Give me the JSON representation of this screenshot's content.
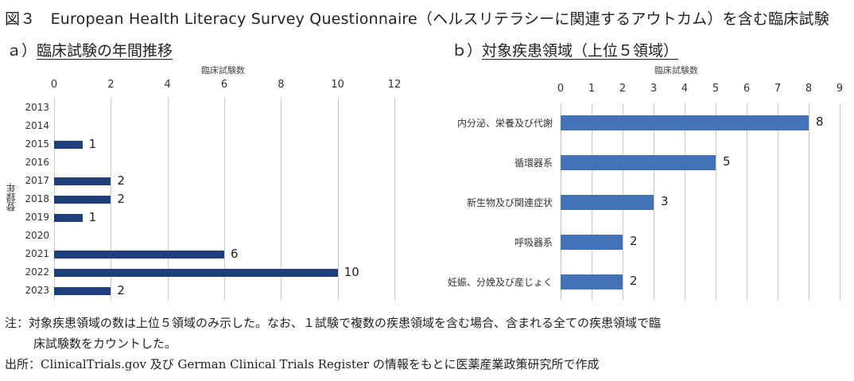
{
  "figure": {
    "title": "図３　European Health Literacy Survey Questionnaire（ヘルスリテラシーに関連するアウトカム）を含む臨床試験"
  },
  "panel_a": {
    "label": "ａ）",
    "title": "臨床試験の年間推移",
    "xlabel": "臨床試験数",
    "ylabel": "登録年"
  },
  "panel_b": {
    "label": "ｂ）",
    "title": "対象疾患領域（上位５領域）",
    "xlabel": "臨床試験数"
  },
  "notes": {
    "note_line1": "注：対象疾患領域の数は上位５領域のみ示した。なお、１試験で複数の疾患領域を含む場合、含まれる全ての疾患領域で臨",
    "note_line2": "床試験数をカウントした。",
    "source": "出所：ClinicalTrials.gov 及び German Clinical Trials Register の情報をもとに医薬産業政策研究所で作成"
  },
  "colors": {
    "bar_a": "#1f3f7c",
    "bar_b": "#4472b8",
    "grid": "#c8c8c8"
  },
  "chart_data": [
    {
      "type": "bar",
      "orientation": "horizontal",
      "title": "ａ）臨床試験の年間推移",
      "xlabel": "臨床試験数",
      "ylabel": "登録年",
      "xlim": [
        0,
        12
      ],
      "xticks": [
        "0",
        "2",
        "4",
        "6",
        "8",
        "10",
        "12"
      ],
      "categories": [
        "2013",
        "2014",
        "2015",
        "2016",
        "2017",
        "2018",
        "2019",
        "2020",
        "2021",
        "2022",
        "2023"
      ],
      "values": [
        0,
        0,
        1,
        0,
        2,
        2,
        1,
        0,
        6,
        10,
        2
      ],
      "data_labels": [
        "",
        "",
        "1",
        "",
        "2",
        "2",
        "1",
        "",
        "6",
        "10",
        "2"
      ],
      "grid": true,
      "legend": "none"
    },
    {
      "type": "bar",
      "orientation": "horizontal",
      "title": "ｂ）対象疾患領域（上位５領域）",
      "xlabel": "臨床試験数",
      "ylabel": "",
      "xlim": [
        0,
        9
      ],
      "xticks": [
        "0",
        "1",
        "2",
        "3",
        "4",
        "5",
        "6",
        "7",
        "8",
        "9"
      ],
      "categories": [
        "内分泌、栄養及び代謝",
        "循環器系",
        "新生物及び関連症状",
        "呼吸器系",
        "妊娠、分娩及び産じょく"
      ],
      "values": [
        8,
        5,
        3,
        2,
        2
      ],
      "data_labels": [
        "8",
        "5",
        "3",
        "2",
        "2"
      ],
      "grid": true,
      "legend": "none"
    }
  ]
}
